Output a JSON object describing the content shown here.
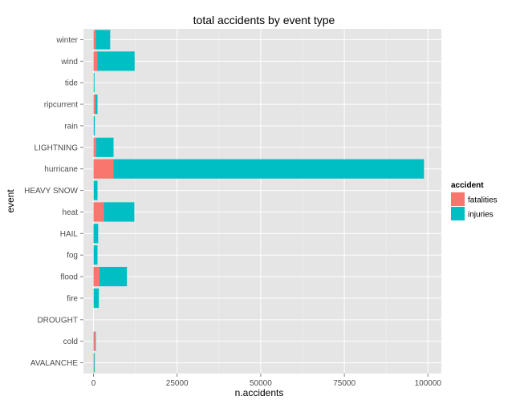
{
  "chart_data": {
    "type": "bar",
    "orientation": "horizontal",
    "stacked": true,
    "title": "total accidents by event type",
    "xlabel": "n.accidents",
    "ylabel": "event",
    "xlim": [
      -3000,
      104000
    ],
    "x_ticks": [
      0,
      25000,
      50000,
      75000,
      100000
    ],
    "categories": [
      "winter",
      "wind",
      "tide",
      "ripcurrent",
      "rain",
      "LIGHTNING",
      "hurricane",
      "HEAVY SNOW",
      "heat",
      "HAIL",
      "fog",
      "flood",
      "fire",
      "DROUGHT",
      "cold",
      "AVALANCHE"
    ],
    "series": [
      {
        "name": "fatalities",
        "color": "#F8766D",
        "values": [
          700,
          1100,
          100,
          600,
          100,
          800,
          6000,
          100,
          3100,
          0,
          100,
          1800,
          100,
          0,
          500,
          200
        ]
      },
      {
        "name": "injuries",
        "color": "#00BFC4",
        "values": [
          4300,
          11200,
          200,
          600,
          300,
          5200,
          92800,
          1100,
          9100,
          1400,
          1100,
          8200,
          1500,
          0,
          200,
          200
        ]
      }
    ],
    "legend": {
      "title": "accident",
      "position": "right"
    },
    "grid": true
  }
}
